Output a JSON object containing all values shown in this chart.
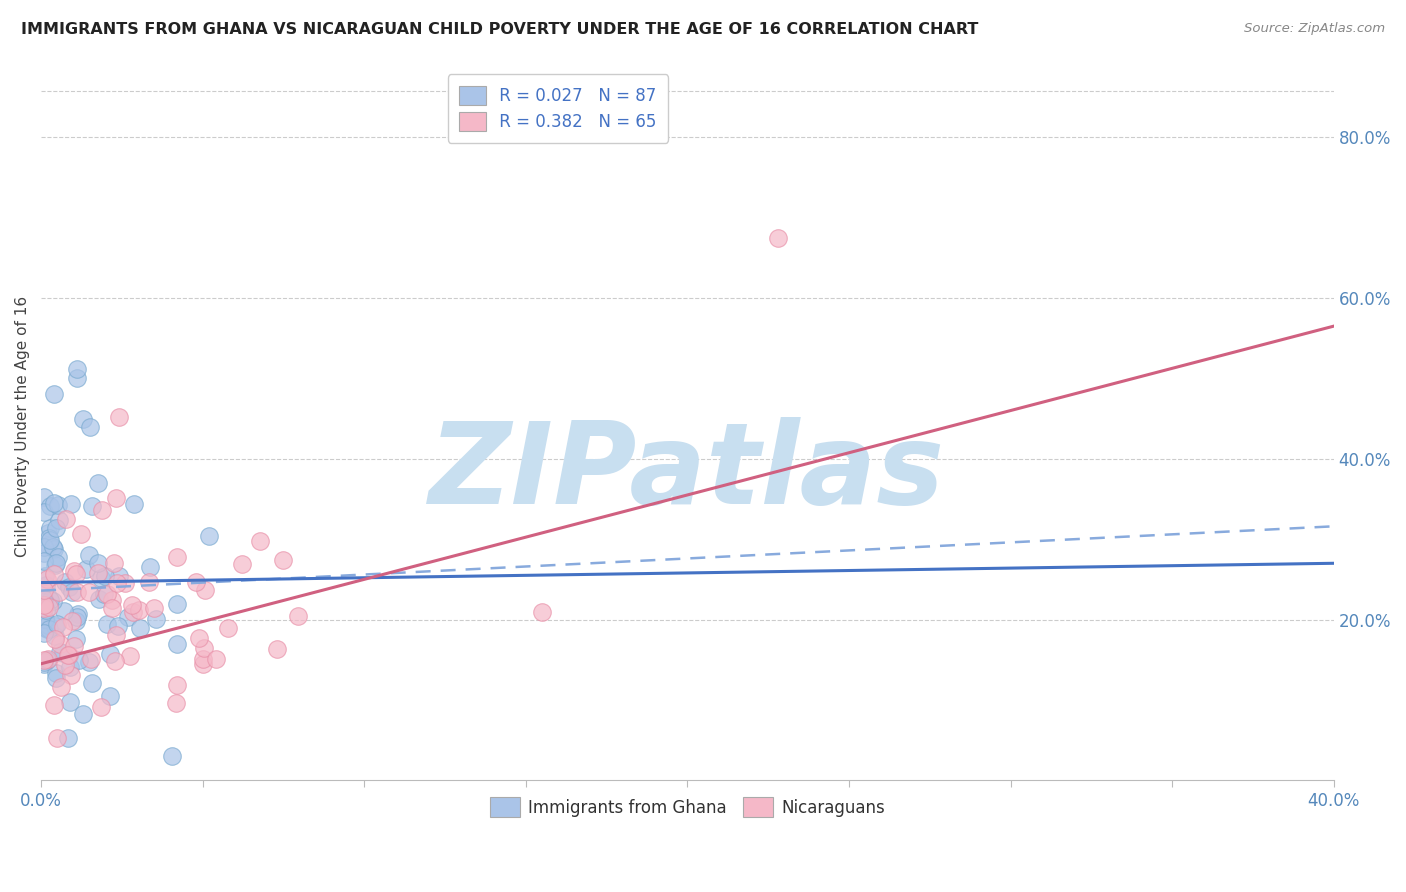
{
  "title": "IMMIGRANTS FROM GHANA VS NICARAGUAN CHILD POVERTY UNDER THE AGE OF 16 CORRELATION CHART",
  "source": "Source: ZipAtlas.com",
  "ylabel": "Child Poverty Under the Age of 16",
  "xlim": [
    0.0,
    0.4
  ],
  "ylim": [
    0.0,
    0.88
  ],
  "xtick_positions": [
    0.0,
    0.05,
    0.1,
    0.15,
    0.2,
    0.25,
    0.3,
    0.35,
    0.4
  ],
  "xticklabels": [
    "0.0%",
    "",
    "",
    "",
    "",
    "",
    "",
    "",
    "40.0%"
  ],
  "yticks_right": [
    0.2,
    0.4,
    0.6,
    0.8
  ],
  "yticklabels_right": [
    "20.0%",
    "40.0%",
    "60.0%",
    "80.0%"
  ],
  "blue_face_color": "#aac4e8",
  "blue_edge_color": "#7aaad0",
  "pink_face_color": "#f5b8c8",
  "pink_edge_color": "#e890a8",
  "blue_line_color": "#4472c4",
  "pink_line_color": "#d06080",
  "dashed_line_color": "#88aadd",
  "legend_label1": "Immigrants from Ghana",
  "legend_label2": "Nicaraguans",
  "R1": "0.027",
  "N1": "87",
  "R2": "0.382",
  "N2": "65",
  "watermark_text": "ZIPatlas",
  "watermark_color": "#c8dff0",
  "grid_color": "#cccccc",
  "background_color": "#ffffff",
  "title_color": "#222222",
  "source_color": "#888888",
  "tick_label_color": "#5588bb",
  "legend_text_color": "#222222",
  "legend_RN_color": "#4472c4",
  "ghana_blue_line_intercept": 0.246,
  "ghana_blue_line_slope": 0.06,
  "dashed_line_intercept": 0.236,
  "dashed_line_slope": 0.2,
  "nicaragua_pink_line_intercept": 0.145,
  "nicaragua_pink_line_slope": 1.05
}
